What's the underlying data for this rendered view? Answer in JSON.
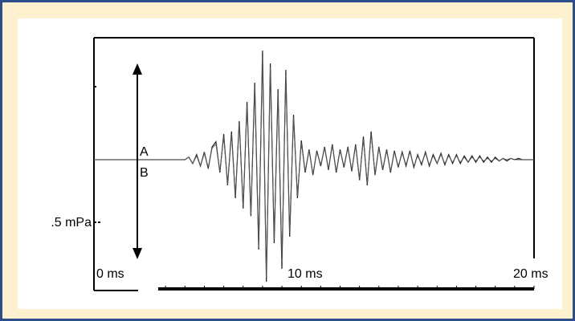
{
  "chart_data": {
    "type": "line",
    "title": "",
    "xlabel": "",
    "ylabel": "",
    "x_unit": "ms",
    "xlim": [
      0,
      20
    ],
    "x_tick_labels": [
      "0 ms",
      "10 ms",
      "20 ms"
    ],
    "y_scale_label": ".5 mPa",
    "y_scale_value_mPa": 0.5,
    "grid": false,
    "legend": "none",
    "trace_labels": [
      "A",
      "B"
    ],
    "series": [
      {
        "x": [
          0,
          0.5,
          1,
          1.5,
          2,
          2.2,
          2.4,
          2.6,
          2.8,
          3.0,
          3.2,
          3.4,
          3.6,
          3.8,
          4.0,
          4.2,
          4.4,
          4.6,
          4.8,
          5.0,
          5.2,
          5.4,
          5.6,
          5.8,
          6.0,
          6.2,
          6.4,
          6.6,
          6.8,
          7.0,
          7.2,
          7.4,
          7.6,
          7.8,
          8.0,
          8.2,
          8.4,
          8.6,
          8.8,
          9.0,
          9.2,
          9.4,
          9.6,
          9.8,
          10.0,
          10.2,
          10.4,
          10.6,
          10.8,
          11.0,
          11.2,
          11.4,
          11.6,
          11.8,
          12.0,
          12.2,
          12.4,
          12.6,
          12.8,
          13.0,
          13.2,
          13.4,
          13.6,
          13.8,
          14.0,
          14.2,
          14.4,
          14.6,
          14.8,
          15.0,
          15.2,
          15.4,
          15.6,
          15.8,
          16.0,
          16.2,
          16.4,
          16.6,
          16.8,
          17.0,
          17.2,
          17.4,
          17.6,
          17.8,
          18.0,
          18.2,
          18.4,
          18.6,
          18.8,
          19.0,
          19.2,
          19.4,
          19.6,
          19.8,
          20.0
        ],
        "y": [
          0,
          0,
          0,
          0,
          0,
          0.02,
          -0.03,
          0.04,
          -0.05,
          0.06,
          -0.07,
          0.1,
          0.14,
          -0.1,
          0.2,
          -0.2,
          0.22,
          -0.3,
          0.3,
          -0.38,
          0.45,
          -0.44,
          0.6,
          -0.7,
          0.85,
          -0.95,
          0.75,
          -0.65,
          0.55,
          -0.85,
          0.7,
          -0.6,
          0.35,
          -0.3,
          0.15,
          -0.1,
          0.08,
          -0.12,
          0.07,
          -0.05,
          0.1,
          -0.08,
          0.12,
          -0.1,
          0.08,
          -0.06,
          0.1,
          -0.09,
          0.12,
          -0.16,
          0.18,
          -0.2,
          0.22,
          -0.12,
          0.1,
          -0.08,
          0.08,
          -0.1,
          0.07,
          -0.06,
          0.06,
          -0.05,
          0.07,
          -0.06,
          0.04,
          -0.04,
          0.06,
          -0.05,
          0.04,
          -0.03,
          0.05,
          -0.04,
          0.04,
          -0.03,
          0.04,
          -0.03,
          0.03,
          -0.02,
          0.03,
          -0.02,
          0.03,
          -0.02,
          0.02,
          -0.02,
          0.02,
          -0.01,
          0.01,
          -0.01,
          0.01,
          0,
          0.01,
          0,
          0,
          0,
          0
        ]
      },
      {
        "x": [
          0,
          0.5,
          1,
          1.5,
          2,
          2.2,
          2.4,
          2.6,
          2.8,
          3.0,
          3.2,
          3.4,
          3.6,
          3.8,
          4.0,
          4.2,
          4.4,
          4.6,
          4.8,
          5.0,
          5.2,
          5.4,
          5.6,
          5.8,
          6.0,
          6.2,
          6.4,
          6.6,
          6.8,
          7.0,
          7.2,
          7.4,
          7.6,
          7.8,
          8.0,
          8.2,
          8.4,
          8.6,
          8.8,
          9.0,
          9.2,
          9.4,
          9.6,
          9.8,
          10.0,
          10.2,
          10.4,
          10.6,
          10.8,
          11.0,
          11.2,
          11.4,
          11.6,
          11.8,
          12.0,
          12.2,
          12.4,
          12.6,
          12.8,
          13.0,
          13.2,
          13.4,
          13.6,
          13.8,
          14.0,
          14.2,
          14.4,
          14.6,
          14.8,
          15.0,
          15.2,
          15.4,
          15.6,
          15.8,
          16.0,
          16.2,
          16.4,
          16.6,
          16.8,
          17.0,
          17.2,
          17.4,
          17.6,
          17.8,
          18.0,
          18.2,
          18.4,
          18.6,
          18.8,
          19.0,
          19.2,
          19.4,
          19.6,
          19.8,
          20.0
        ],
        "y": [
          0,
          0,
          0,
          0,
          0,
          0.02,
          -0.03,
          0.03,
          -0.05,
          0.05,
          -0.06,
          0.09,
          0.12,
          -0.09,
          0.18,
          -0.19,
          0.2,
          -0.28,
          0.28,
          -0.36,
          0.42,
          -0.42,
          0.57,
          -0.68,
          0.8,
          -0.92,
          0.72,
          -0.62,
          0.52,
          -0.8,
          0.66,
          -0.57,
          0.33,
          -0.28,
          0.13,
          -0.09,
          0.07,
          -0.11,
          0.06,
          -0.04,
          0.09,
          -0.07,
          0.11,
          -0.09,
          0.07,
          -0.05,
          0.09,
          -0.08,
          0.11,
          -0.15,
          0.16,
          -0.19,
          0.2,
          -0.11,
          0.09,
          -0.07,
          0.07,
          -0.09,
          0.06,
          -0.05,
          0.05,
          -0.04,
          0.06,
          -0.05,
          0.03,
          -0.03,
          0.05,
          -0.04,
          0.03,
          -0.03,
          0.04,
          -0.03,
          0.03,
          -0.02,
          0.03,
          -0.02,
          0.02,
          -0.02,
          0.02,
          -0.01,
          0.02,
          -0.01,
          0.01,
          -0.01,
          0.01,
          -0.01,
          0.01,
          0,
          0.01,
          0,
          0,
          0,
          0,
          0,
          0
        ]
      }
    ]
  }
}
